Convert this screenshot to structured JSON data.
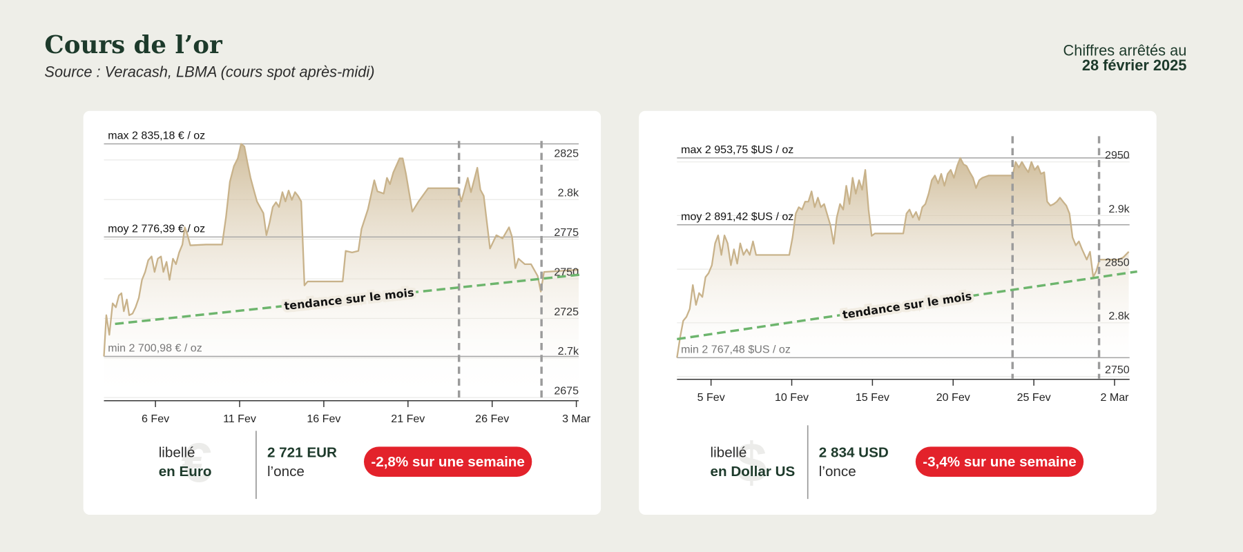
{
  "header": {
    "title": "Cours de l’or",
    "subtitle": "Source : Veracash, LBMA (cours spot après-midi)",
    "date_label": "Chiffres arrêtés au",
    "date": "28 février 2025"
  },
  "chart_data": [
    {
      "type": "area",
      "color": "#c8b28a",
      "grid": true,
      "xlim": [
        2.94,
        31.14
      ],
      "ylim": [
        2673.5,
        2837
      ],
      "xticks": [
        {
          "value": 6,
          "label": "6 Fev"
        },
        {
          "value": 11,
          "label": "11 Fev"
        },
        {
          "value": 16,
          "label": "16 Fev"
        },
        {
          "value": 21,
          "label": "21 Fev"
        },
        {
          "value": 26,
          "label": "26 Fev"
        },
        {
          "value": 31,
          "label": "3 Mar"
        }
      ],
      "yticks": [
        2825,
        {
          "value": 2800,
          "label": "2.8k"
        },
        2775,
        2750,
        2725,
        {
          "value": 2700,
          "label": "2.7k"
        },
        2675
      ],
      "reference_lines": [
        {
          "value": 2835.18,
          "label": "max 2 835,18 € / oz"
        },
        {
          "value": 2776.39,
          "label": "moy 2 776,39 € / oz"
        },
        {
          "value": 2700.98,
          "label": "min 2 700,98 € / oz"
        }
      ],
      "vlines": [
        24.03,
        28.93
      ],
      "trend": {
        "label": "tendance sur le mois",
        "color": "#6db56d",
        "x": [
          3.6,
          31.4
        ],
        "values": [
          2721.5,
          2752.8
        ]
      },
      "x": [
        2.94,
        3.08,
        3.26,
        3.46,
        3.65,
        3.83,
        3.98,
        4.12,
        4.3,
        4.44,
        4.64,
        4.82,
        5.01,
        5.2,
        5.39,
        5.57,
        5.77,
        5.95,
        6.14,
        6.33,
        6.47,
        6.66,
        6.84,
        7.04,
        7.22,
        7.41,
        7.6,
        7.74,
        7.88,
        8.07,
        9.01,
        9.96,
        10.19,
        10.42,
        10.66,
        10.89,
        11.09,
        11.28,
        11.46,
        11.65,
        11.84,
        12.03,
        12.21,
        12.41,
        12.59,
        12.78,
        12.97,
        13.16,
        13.34,
        13.54,
        13.72,
        13.91,
        14.1,
        14.29,
        14.47,
        14.66,
        14.85,
        15.04,
        17.12,
        17.3,
        17.68,
        18.05,
        18.24,
        18.62,
        19,
        19.18,
        19.56,
        19.75,
        19.93,
        20.13,
        20.5,
        20.69,
        20.88,
        21.26,
        21.63,
        22.2,
        23.99,
        24.17,
        24.55,
        24.74,
        25.12,
        25.3,
        25.5,
        25.87,
        26.25,
        26.62,
        27,
        27.18,
        27.38,
        27.56,
        27.94,
        28.31,
        28.7,
        28.89,
        29.08,
        31.14
      ],
      "values": [
        2701,
        2727,
        2714.6,
        2734.5,
        2732,
        2739.4,
        2740.9,
        2729.5,
        2736.9,
        2727,
        2728,
        2732,
        2737.9,
        2749.3,
        2754.3,
        2761.7,
        2764.1,
        2754.3,
        2762.7,
        2764.1,
        2754.3,
        2760.7,
        2749.3,
        2762.7,
        2759.2,
        2766.6,
        2771.6,
        2782.5,
        2778.5,
        2771.1,
        2771.6,
        2771.6,
        2788.9,
        2811.2,
        2821.1,
        2826,
        2835.2,
        2833.5,
        2823.5,
        2813.7,
        2806.2,
        2798.8,
        2795.3,
        2791.4,
        2777.5,
        2785.4,
        2795.3,
        2798.3,
        2795.3,
        2804.7,
        2798.8,
        2805.7,
        2799.8,
        2804.7,
        2802.3,
        2798.8,
        2745.8,
        2748.3,
        2748.3,
        2767.6,
        2766.6,
        2767.6,
        2781.5,
        2793.9,
        2812.2,
        2805.2,
        2803.8,
        2813.7,
        2809.7,
        2817.1,
        2826,
        2826,
        2816.1,
        2792.4,
        2798.8,
        2807.2,
        2807.2,
        2798.8,
        2813.7,
        2804.7,
        2820.1,
        2806.2,
        2802.3,
        2769.1,
        2777.5,
        2775.5,
        2782.5,
        2776.5,
        2756.7,
        2762.7,
        2759.2,
        2759.2,
        2751.8,
        2741.9,
        2754.3,
        2755.7
      ]
    },
    {
      "type": "area",
      "color": "#c8b28a",
      "grid": true,
      "xlim": [
        2.89,
        30.93
      ],
      "ylim": [
        2748,
        2974
      ],
      "xticks": [
        {
          "value": 5,
          "label": "5 Fev"
        },
        {
          "value": 10,
          "label": "10 Fev"
        },
        {
          "value": 15,
          "label": "15 Fev"
        },
        {
          "value": 20,
          "label": "20 Fev"
        },
        {
          "value": 25,
          "label": "25 Fev"
        },
        {
          "value": 30,
          "label": "2 Mar"
        }
      ],
      "yticks": [
        2950,
        {
          "value": 2900,
          "label": "2.9k"
        },
        2850,
        {
          "value": 2800,
          "label": "2.8k"
        },
        2750
      ],
      "reference_lines": [
        {
          "value": 2953.75,
          "label": "max 2 953,75 $US / oz"
        },
        {
          "value": 2891.42,
          "label": "moy 2 891,42 $US / oz"
        },
        {
          "value": 2767.48,
          "label": "min 2 767,48 $US / oz"
        }
      ],
      "vlines": [
        23.68,
        29.04
      ],
      "trend": {
        "label": "tendance sur le mois",
        "color": "#6db56d",
        "x": [
          2.89,
          31.4
        ],
        "values": [
          2784.8,
          2847.8
        ]
      },
      "x": [
        2.89,
        3.09,
        3.28,
        3.48,
        3.68,
        3.87,
        4.07,
        4.26,
        4.46,
        4.66,
        4.85,
        5.05,
        5.25,
        5.44,
        5.64,
        5.83,
        6.03,
        6.23,
        6.42,
        6.62,
        6.81,
        7.01,
        7.21,
        7.4,
        7.6,
        7.79,
        8.09,
        9.85,
        10.05,
        10.25,
        10.44,
        10.64,
        10.83,
        11.03,
        11.23,
        11.42,
        11.62,
        11.81,
        12.01,
        12.21,
        12.4,
        12.6,
        12.79,
        12.99,
        13.19,
        13.38,
        13.58,
        13.77,
        13.97,
        14.17,
        14.36,
        14.56,
        14.76,
        14.95,
        15.15,
        16.91,
        17.11,
        17.3,
        17.5,
        17.7,
        17.89,
        18.09,
        18.28,
        18.48,
        18.68,
        18.87,
        19.07,
        19.26,
        19.46,
        19.66,
        19.85,
        20.05,
        20.25,
        20.44,
        20.64,
        20.83,
        21.03,
        21.23,
        21.42,
        21.62,
        21.81,
        22.21,
        23.68,
        23.87,
        24.07,
        24.26,
        24.46,
        24.66,
        24.85,
        25.05,
        25.25,
        25.44,
        25.64,
        25.83,
        26.03,
        26.23,
        26.42,
        26.62,
        26.81,
        27.01,
        27.21,
        27.4,
        27.6,
        27.79,
        27.99,
        28.28,
        28.48,
        28.68,
        28.87,
        29.07,
        29.26,
        30.25,
        30.54,
        30.88
      ],
      "values": [
        2767.5,
        2787.1,
        2801.9,
        2805.6,
        2813,
        2835.2,
        2816.7,
        2827.8,
        2824.1,
        2842.6,
        2846.3,
        2853.7,
        2874.1,
        2881.5,
        2863.3,
        2881.5,
        2874.1,
        2853.7,
        2868.5,
        2855.2,
        2874.1,
        2863.3,
        2868.5,
        2863.3,
        2875.9,
        2863.3,
        2863.3,
        2863.3,
        2879.6,
        2901.9,
        2907.8,
        2905.6,
        2913,
        2913,
        2922.6,
        2907.8,
        2916.7,
        2907.8,
        2910.8,
        2900.4,
        2890.8,
        2873.7,
        2898.2,
        2910.8,
        2905.6,
        2927.8,
        2910.8,
        2935.2,
        2920.4,
        2933,
        2924.1,
        2942.6,
        2905.6,
        2881.1,
        2883.3,
        2883.3,
        2901.9,
        2905.6,
        2898.2,
        2903.4,
        2895.9,
        2907.8,
        2910.8,
        2920.4,
        2933,
        2937.4,
        2930,
        2938.9,
        2927.8,
        2938.9,
        2942.6,
        2935.2,
        2946.3,
        2953.75,
        2947.8,
        2946.3,
        2940.4,
        2935.2,
        2925.6,
        2933,
        2935.2,
        2937.4,
        2937.4,
        2950,
        2944.8,
        2950,
        2944.8,
        2940.4,
        2950,
        2942.6,
        2946.3,
        2938.9,
        2940.4,
        2913,
        2909.3,
        2910.8,
        2913,
        2916.7,
        2913,
        2909.3,
        2901.9,
        2879.6,
        2872.2,
        2875.9,
        2868.5,
        2858.9,
        2866.3,
        2842.6,
        2848.5,
        2858.9,
        2858.9,
        2858.9,
        2861.1,
        2866.3
      ]
    }
  ],
  "panels": [
    {
      "label_top": "libellé",
      "label_bottom": "en Euro",
      "symbol": "€",
      "price": "2 721 EUR",
      "unit": "l’once",
      "change": "-2,8% sur une semaine"
    },
    {
      "label_top": "libellé",
      "label_bottom": "en Dollar US",
      "symbol": "$",
      "price": "2 834 USD",
      "unit": "l’once",
      "change": "-3,4% sur une semaine"
    }
  ]
}
